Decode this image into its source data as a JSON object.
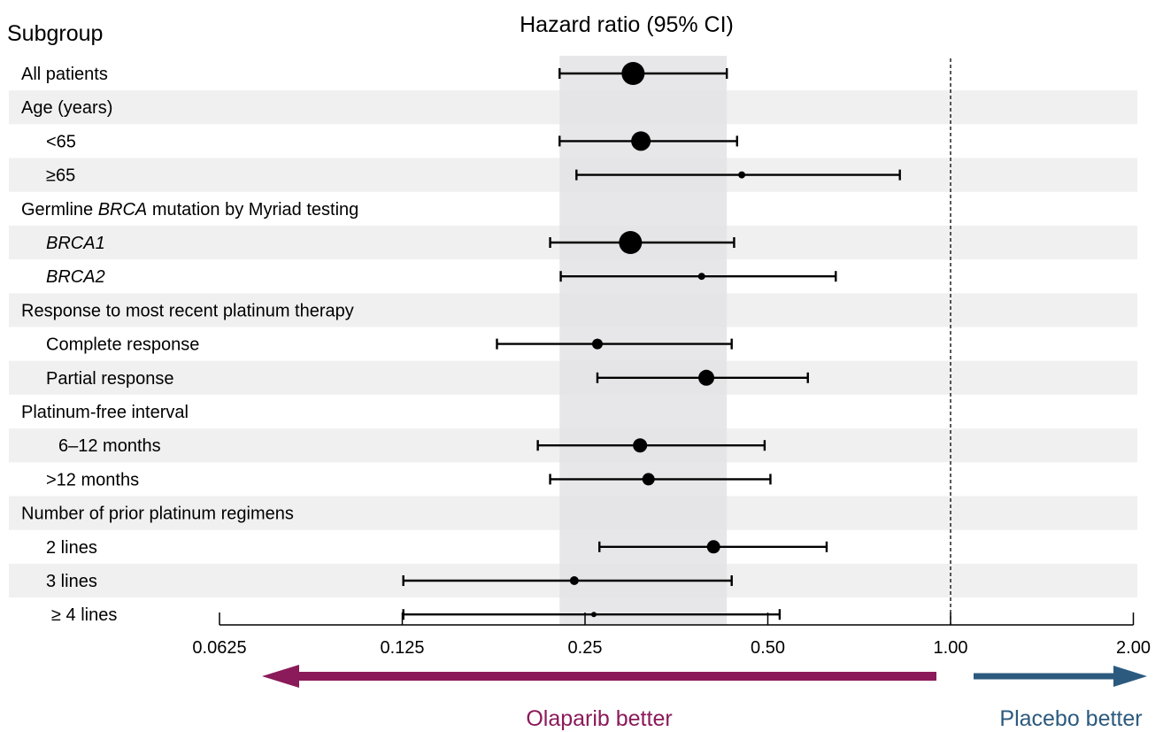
{
  "chart_data": {
    "type": "forest",
    "title": "Hazard ratio (95% CI)",
    "column_header": "Subgroup",
    "x_scale": "log2",
    "xlim": [
      0.0625,
      2.0
    ],
    "x_ticks": [
      "0.0625",
      "0.125",
      "0.25",
      "0.50",
      "1.00",
      "2.00"
    ],
    "x_tick_values": [
      0.0625,
      0.125,
      0.25,
      0.5,
      1.0,
      2.0
    ],
    "reference_line": 1.0,
    "shaded_ci": [
      0.227,
      0.428
    ],
    "rows": [
      {
        "label": "All patients",
        "type": "item",
        "indent": 0,
        "hr": 0.3,
        "lo": 0.227,
        "hi": 0.428,
        "size": 13
      },
      {
        "label": "Age (years)",
        "type": "header",
        "indent": 0
      },
      {
        "label": "<65",
        "type": "item",
        "indent": 1,
        "hr": 0.309,
        "lo": 0.227,
        "hi": 0.445,
        "size": 11
      },
      {
        "label": "≥65",
        "type": "item",
        "indent": 1,
        "hr": 0.453,
        "lo": 0.242,
        "hi": 0.825,
        "size": 4
      },
      {
        "label": "Germline BRCA mutation by Myriad testing",
        "type": "header",
        "indent": 0,
        "italic_word": "BRCA"
      },
      {
        "label": "BRCA1",
        "type": "item",
        "indent": 1,
        "italic": true,
        "hr": 0.297,
        "lo": 0.219,
        "hi": 0.44,
        "size": 13
      },
      {
        "label": "BRCA2",
        "type": "item",
        "indent": 1,
        "italic": true,
        "hr": 0.389,
        "lo": 0.228,
        "hi": 0.647,
        "size": 4
      },
      {
        "label": "Response to most recent platinum therapy",
        "type": "header",
        "indent": 0
      },
      {
        "label": "Complete response",
        "type": "item",
        "indent": 1,
        "hr": 0.262,
        "lo": 0.179,
        "hi": 0.436,
        "size": 6
      },
      {
        "label": "Partial response",
        "type": "item",
        "indent": 1,
        "hr": 0.396,
        "lo": 0.262,
        "hi": 0.582,
        "size": 9
      },
      {
        "label": "Platinum-free interval",
        "type": "header",
        "indent": 0
      },
      {
        "label": "6–12 months",
        "type": "item",
        "indent": 2,
        "hr": 0.308,
        "lo": 0.209,
        "hi": 0.494,
        "size": 8
      },
      {
        "label": ">12 months",
        "type": "item",
        "indent": 1,
        "hr": 0.318,
        "lo": 0.219,
        "hi": 0.505,
        "size": 7
      },
      {
        "label": "Number of prior platinum regimens",
        "type": "header",
        "indent": 0
      },
      {
        "label": "2 lines",
        "type": "item",
        "indent": 1,
        "hr": 0.407,
        "lo": 0.264,
        "hi": 0.625,
        "size": 7.5
      },
      {
        "label": "3 lines",
        "type": "item",
        "indent": 1,
        "hr": 0.24,
        "lo": 0.1255,
        "hi": 0.436,
        "size": 5
      },
      {
        "label": "≥ 4 lines",
        "type": "item",
        "indent": 1.3,
        "hr": 0.2585,
        "lo": 0.1255,
        "hi": 0.523,
        "size": 3
      }
    ],
    "direction_labels": {
      "left": "Olaparib better",
      "right": "Placebo better",
      "left_color": "#8b1a5a",
      "right_color": "#2c5a7e"
    },
    "colors": {
      "band_stripe": "#f0f0f0",
      "shaded_ci": "#e3e3e5",
      "marker": "#000000"
    }
  }
}
